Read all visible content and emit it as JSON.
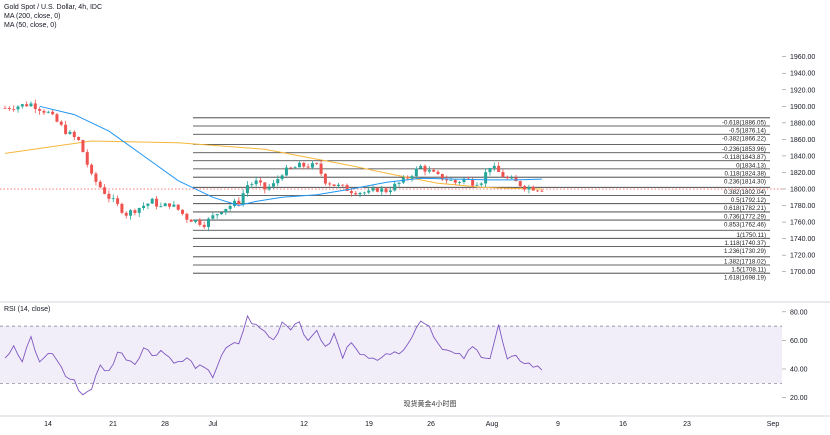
{
  "legend": {
    "symbol": "Gold Spot / U.S. Dollar, 4h, IDC",
    "ma200": "MA (200, close, 0)",
    "ma50": "MA (50, close, 0)",
    "rsi": "RSI (14, close)"
  },
  "watermark": "现货黄金4小时图",
  "colors": {
    "up": "#26a69a",
    "down": "#ef5350",
    "ma200": "#f5b73b",
    "ma50": "#2196f3",
    "rsi": "#7e57c2",
    "fib": "#333333",
    "last_price_line": "#ef5350"
  },
  "chart_data": [
    {
      "type": "candlestick",
      "title": "Gold Spot / U.S. Dollar, 4h, IDC",
      "x_tick_labels": [
        "14",
        "21",
        "28",
        "Jul",
        "12",
        "19",
        "26",
        "Aug",
        "9",
        "16",
        "23",
        "Sep"
      ],
      "y_ticks": [
        1700,
        1720,
        1740,
        1760,
        1780,
        1800,
        1820,
        1840,
        1860,
        1880,
        1900,
        1920,
        1940,
        1960
      ],
      "y_tick_labels": [
        "1700.00",
        "1720.00",
        "1740.00",
        "1760.00",
        "1780.00",
        "1800.00",
        "1820.00",
        "1840.00",
        "1860.00",
        "1880.00",
        "1900.00",
        "1920.00",
        "1940.00",
        "1960.00"
      ],
      "ylim": [
        1693,
        1969
      ],
      "grid": false,
      "price_series": {
        "name": "XAUUSD",
        "x_day": [
          0,
          3,
          5,
          7,
          8.5,
          9,
          10,
          12,
          14,
          15,
          17,
          18,
          19,
          20,
          21,
          23,
          25,
          27,
          28,
          29,
          30,
          31,
          32,
          34,
          36,
          37,
          38,
          40,
          42,
          43,
          44,
          46,
          48,
          50,
          51,
          52,
          53,
          54,
          55,
          56,
          58,
          59,
          60,
          62
        ],
        "close": [
          1898,
          1903,
          1892,
          1870,
          1858,
          1845,
          1815,
          1790,
          1770,
          1775,
          1785,
          1778,
          1782,
          1775,
          1765,
          1758,
          1775,
          1785,
          1805,
          1808,
          1800,
          1805,
          1820,
          1828,
          1828,
          1810,
          1805,
          1798,
          1795,
          1800,
          1798,
          1810,
          1827,
          1815,
          1812,
          1808,
          1812,
          1808,
          1810,
          1828,
          1812,
          1808,
          1803,
          1800
        ]
      },
      "ma200": {
        "name": "MA (200, close, 0)",
        "x_day": [
          0,
          10,
          20,
          30,
          40,
          45,
          50,
          55,
          58,
          62
        ],
        "y": [
          1843,
          1858,
          1856,
          1848,
          1828,
          1817,
          1807,
          1802,
          1801,
          1800
        ]
      },
      "ma50": {
        "name": "MA (50, close, 0)",
        "x_day": [
          4,
          8,
          12,
          16,
          20,
          24,
          27,
          29,
          32,
          36,
          40,
          44,
          48,
          52,
          56,
          59,
          62
        ],
        "y": [
          1900,
          1890,
          1870,
          1840,
          1810,
          1790,
          1780,
          1785,
          1790,
          1793,
          1800,
          1808,
          1813,
          1812,
          1811,
          1811,
          1812
        ]
      },
      "fibonacci": {
        "levels": [
          {
            "ratio": "-0.618",
            "price": "1886.05"
          },
          {
            "ratio": "-0.5",
            "price": "1876.14"
          },
          {
            "ratio": "-0.382",
            "price": "1866.22"
          },
          {
            "ratio": "-0.236",
            "price": "1853.96"
          },
          {
            "ratio": "-0.118",
            "price": "1843.87"
          },
          {
            "ratio": "0",
            "price": "1834.13"
          },
          {
            "ratio": "0.118",
            "price": "1824.38"
          },
          {
            "ratio": "0.236",
            "price": "1814.30"
          },
          {
            "ratio": "0.382",
            "price": "1802.04"
          },
          {
            "ratio": "0.5",
            "price": "1792.12"
          },
          {
            "ratio": "0.618",
            "price": "1782.21"
          },
          {
            "ratio": "0.736",
            "price": "1772.29"
          },
          {
            "ratio": "0.853",
            "price": "1762.46"
          },
          {
            "ratio": "1",
            "price": "1750.11"
          },
          {
            "ratio": "1.118",
            "price": "1740.37"
          },
          {
            "ratio": "1.236",
            "price": "1730.29"
          },
          {
            "ratio": "1.382",
            "price": "1718.02"
          },
          {
            "ratio": "1.5",
            "price": "1708.11"
          },
          {
            "ratio": "1.618",
            "price": "1698.19"
          }
        ]
      },
      "last_price": 1800
    },
    {
      "type": "line",
      "title": "RSI (14, close)",
      "y_ticks": [
        20,
        40,
        60,
        80
      ],
      "y_tick_labels": [
        "20.00",
        "40.00",
        "60.00",
        "80.00"
      ],
      "ylim": [
        15,
        88
      ],
      "bands": [
        30,
        70
      ],
      "series": [
        {
          "name": "RSI (14, close)",
          "x_day": [
            0,
            1,
            2,
            3,
            4,
            5,
            6,
            7,
            8,
            9,
            10,
            11,
            12,
            13,
            14,
            15,
            16,
            17,
            18,
            19,
            20,
            21,
            22,
            23,
            24,
            25,
            26,
            27,
            28,
            29,
            30,
            31,
            32,
            33,
            34,
            35,
            36,
            37,
            38,
            39,
            40,
            41,
            42,
            43,
            44,
            45,
            46,
            47,
            48,
            49,
            50,
            51,
            52,
            53,
            54,
            55,
            56,
            57,
            58,
            59,
            60,
            61,
            62
          ],
          "values": [
            48,
            55,
            45,
            62,
            44,
            52,
            47,
            35,
            31,
            22,
            27,
            42,
            38,
            52,
            48,
            44,
            55,
            50,
            53,
            48,
            44,
            47,
            42,
            40,
            35,
            50,
            56,
            58,
            76,
            70,
            66,
            60,
            73,
            69,
            74,
            58,
            68,
            54,
            64,
            48,
            60,
            52,
            46,
            48,
            52,
            50,
            55,
            62,
            75,
            70,
            58,
            53,
            50,
            48,
            55,
            50,
            48,
            70,
            46,
            48,
            45,
            42,
            40
          ]
        }
      ]
    }
  ]
}
